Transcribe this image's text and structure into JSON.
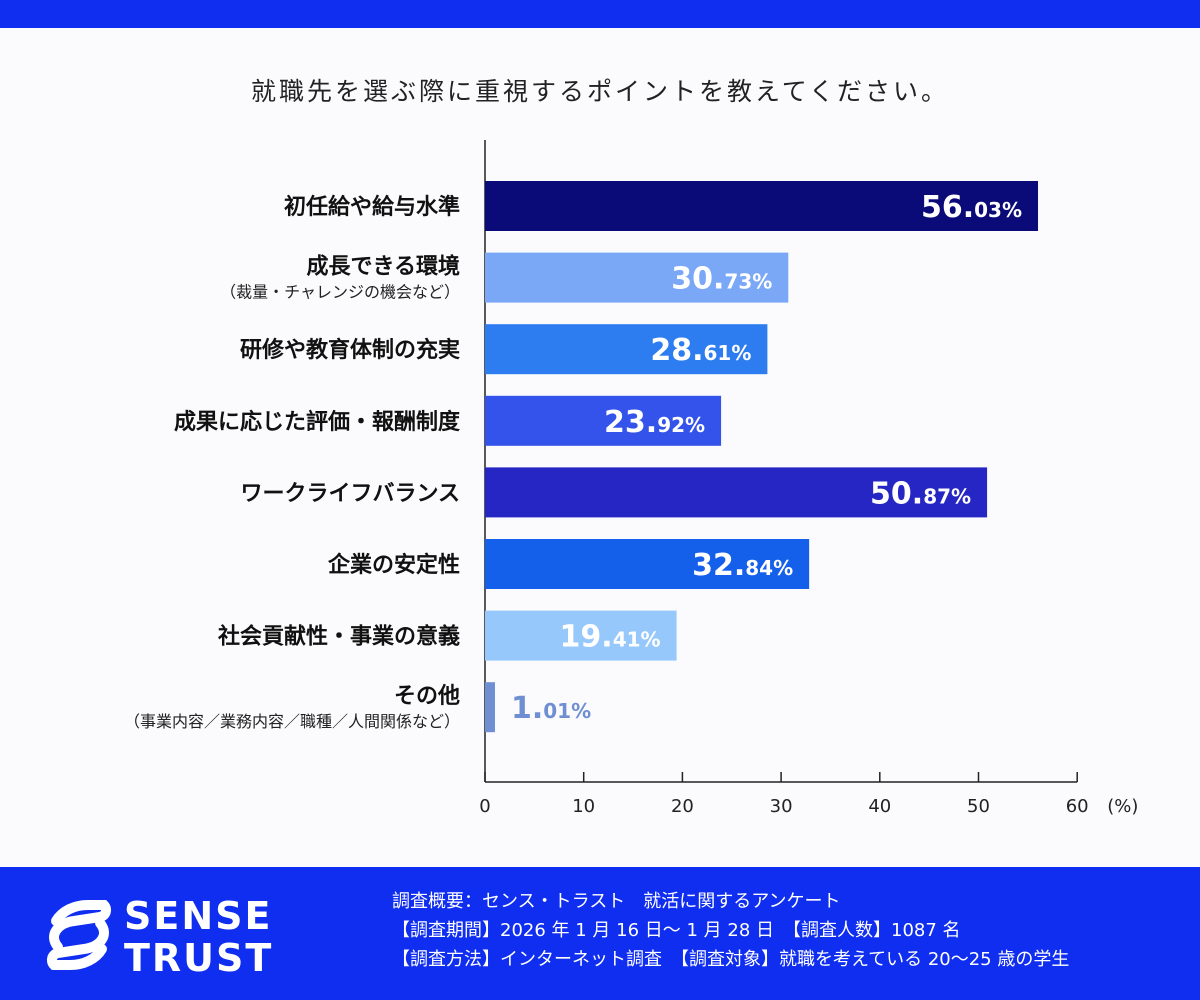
{
  "header": {
    "accent": "#0f2ef0"
  },
  "chart_data": {
    "type": "bar",
    "orientation": "horizontal",
    "title": "就職先を選ぶ際に重視するポイントを教えてください。",
    "categories": [
      {
        "label": "初任給や給与水準",
        "sub": ""
      },
      {
        "label": "成長できる環境",
        "sub": "（裁量・チャレンジの機会など）"
      },
      {
        "label": "研修や教育体制の充実",
        "sub": ""
      },
      {
        "label": "成果に応じた評価・報酬制度",
        "sub": ""
      },
      {
        "label": "ワークライフバランス",
        "sub": ""
      },
      {
        "label": "企業の安定性",
        "sub": ""
      },
      {
        "label": "社会貢献性・事業の意義",
        "sub": ""
      },
      {
        "label": "その他",
        "sub": "（事業内容／業務内容／職種／人間関係など）"
      }
    ],
    "values": [
      56.03,
      30.73,
      28.61,
      23.92,
      50.87,
      32.84,
      19.41,
      1.01
    ],
    "value_labels": [
      {
        "int": "56.",
        "dec": "03%"
      },
      {
        "int": "30.",
        "dec": "73%"
      },
      {
        "int": "28.",
        "dec": "61%"
      },
      {
        "int": "23.",
        "dec": "92%"
      },
      {
        "int": "50.",
        "dec": "87%"
      },
      {
        "int": "32.",
        "dec": "84%"
      },
      {
        "int": "19.",
        "dec": "41%"
      },
      {
        "int": "1.",
        "dec": "01%"
      }
    ],
    "colors": [
      "#0a0a78",
      "#7aa7f6",
      "#2e7df0",
      "#3353ea",
      "#2626c4",
      "#1560ea",
      "#96c8fb",
      "#6f8fd2"
    ],
    "xlim": [
      0,
      60
    ],
    "xticks": [
      0,
      10,
      20,
      30,
      40,
      50,
      60
    ],
    "xunit": "(%)"
  },
  "footer": {
    "brand_line1": "SENSE",
    "brand_line2": "TRUST",
    "meta": [
      "調査概要：センス・トラスト　就活に関するアンケート",
      "【調査期間】2026 年 1 月 16 日〜 1 月 28 日　【調査人数】1087 名",
      "【調査方法】インターネット調査　【調査対象】就職を考えている 20〜25 歳の学生"
    ]
  }
}
